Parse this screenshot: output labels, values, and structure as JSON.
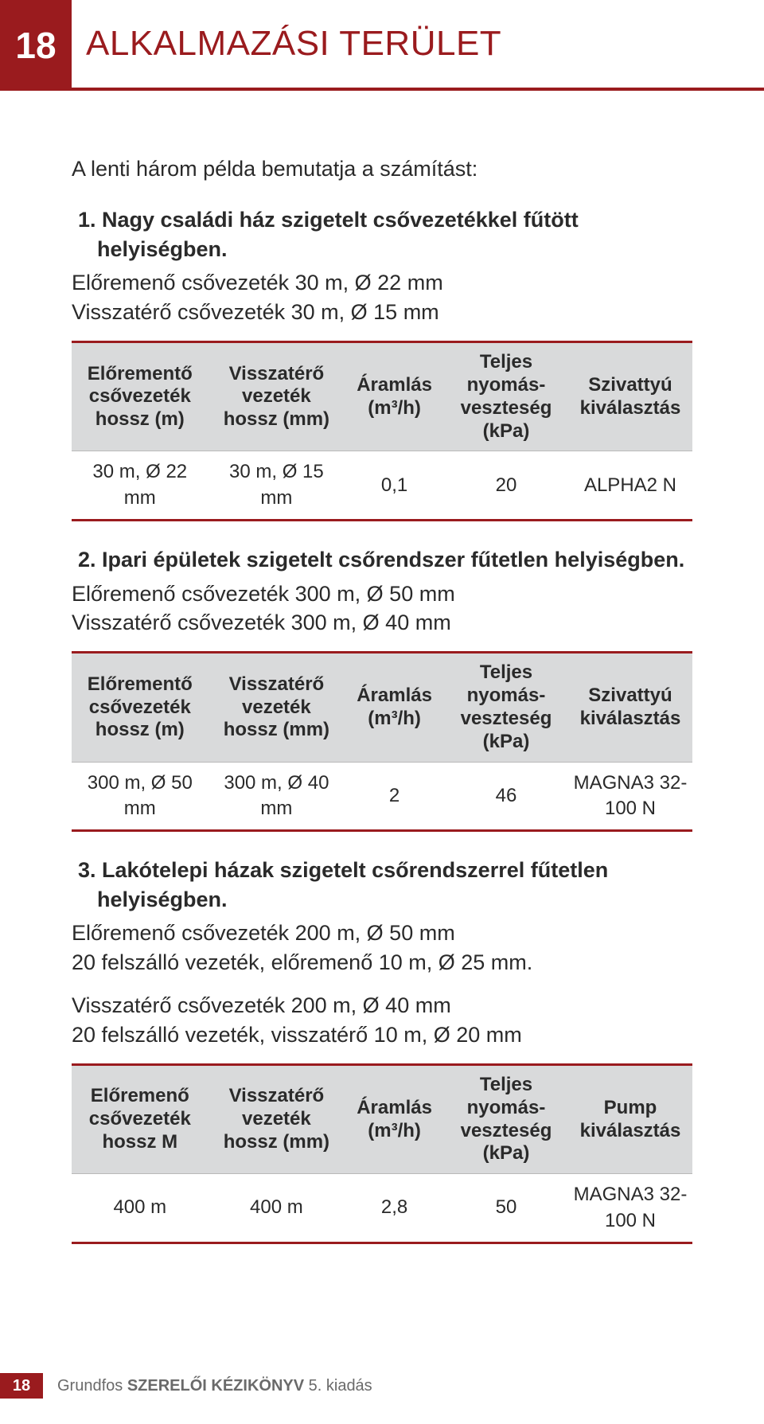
{
  "colors": {
    "brand": "#9a1b1e",
    "header_bg": "#d9dadb",
    "row_border": "#b9b9b9",
    "text": "#2a2a2a",
    "footer_text": "#6a6a6a",
    "page_bg": "#ffffff"
  },
  "header": {
    "page_number": "18",
    "title": "ALKALMAZÁSI TERÜLET"
  },
  "intro": "A lenti három példa bemutatja a számítást:",
  "examples": [
    {
      "title": "1. Nagy családi ház szigetelt csővezetékkel fűtött helyiségben.",
      "spec_lines": [
        "Előremenő csővezeték 30 m, Ø 22 mm",
        "Visszatérő csővezeték 30 m, Ø 15 mm"
      ],
      "table": {
        "columns": [
          "Előrementő csővezeték hossz (m)",
          "Visszatérő vezeték hossz (mm)",
          "Áramlás (m³/h)",
          "Teljes nyomás-veszteség (kPa)",
          "Szivattyú kiválasztás"
        ],
        "rows": [
          [
            "30 m, Ø 22 mm",
            "30 m, Ø 15 mm",
            "0,1",
            "20",
            "ALPHA2 N"
          ]
        ]
      }
    },
    {
      "title": "2. Ipari épületek szigetelt csőrendszer fűtetlen helyiségben.",
      "spec_lines": [
        "Előremenő csővezeték 300 m, Ø 50 mm",
        "Visszatérő csővezeték 300 m, Ø 40 mm"
      ],
      "table": {
        "columns": [
          "Előrementő csővezeték hossz (m)",
          "Visszatérő vezeték hossz (mm)",
          "Áramlás (m³/h)",
          "Teljes nyomás-veszteség (kPa)",
          "Szivattyú kiválasztás"
        ],
        "rows": [
          [
            "300 m, Ø 50 mm",
            "300 m, Ø 40 mm",
            "2",
            "46",
            "MAGNA3 32-100 N"
          ]
        ]
      }
    },
    {
      "title": "3. Lakótelepi házak szigetelt csőrendszerrel fűtetlen helyiségben.",
      "spec_lines": [
        "Előremenő csővezeték 200 m, Ø 50 mm",
        "20 felszálló vezeték, előremenő 10 m, Ø 25 mm.",
        "Visszatérő csővezeték 200 m, Ø 40 mm",
        "20 felszálló vezeték, visszatérő 10 m, Ø 20 mm"
      ],
      "spec_break_after": 2,
      "table": {
        "columns": [
          "Előremenő csővezeték hossz M",
          "Visszatérő vezeték hossz (mm)",
          "Áramlás (m³/h)",
          "Teljes nyomás-veszteség (kPa)",
          "Pump kiválasztás"
        ],
        "rows": [
          [
            "400 m",
            "400 m",
            "2,8",
            "50",
            "MAGNA3 32-100 N"
          ]
        ]
      }
    }
  ],
  "footer": {
    "page_number": "18",
    "text_prefix": "Grundfos ",
    "text_bold": "SZERELŐI KÉZIKÖNYV",
    "text_suffix": " 5. kiadás"
  }
}
